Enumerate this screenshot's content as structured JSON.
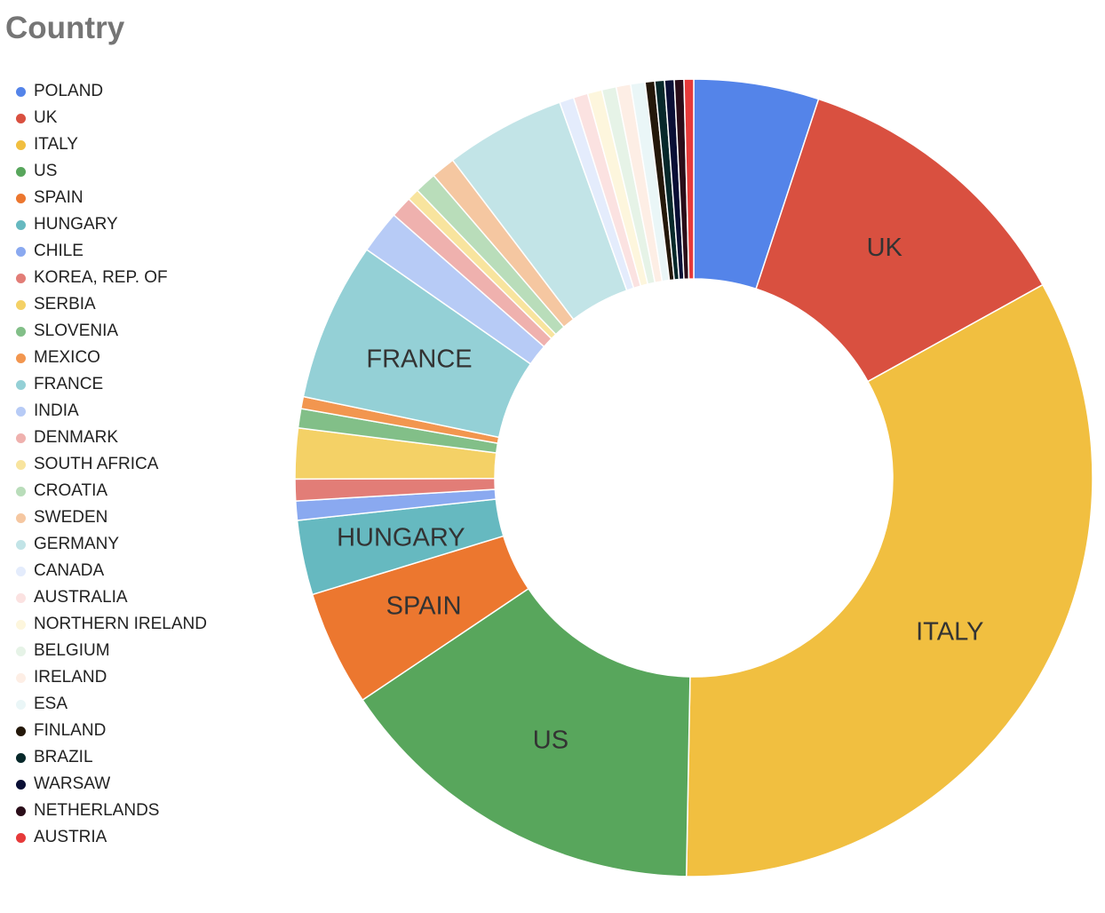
{
  "chart_data": {
    "type": "pie",
    "title": "Country",
    "legend_position": "left",
    "categories": [
      "POLAND",
      "UK",
      "ITALY",
      "US",
      "SPAIN",
      "HUNGARY",
      "CHILE",
      "KOREA, REP. OF",
      "SERBIA",
      "SLOVENIA",
      "MEXICO",
      "FRANCE",
      "INDIA",
      "DENMARK",
      "SOUTH AFRICA",
      "CROATIA",
      "SWEDEN",
      "GERMANY",
      "CANADA",
      "AUSTRALIA",
      "NORTHERN IRELAND",
      "BELGIUM",
      "IRELAND",
      "ESA",
      "FINLAND",
      "BRAZIL",
      "WARSAW",
      "NETHERLANDS",
      "AUSTRIA"
    ],
    "values": [
      5.2,
      12.2,
      34.2,
      15.7,
      4.8,
      3.1,
      0.8,
      0.9,
      2.1,
      0.8,
      0.5,
      6.6,
      1.8,
      0.9,
      0.5,
      0.9,
      1.0,
      5.0,
      0.6,
      0.6,
      0.6,
      0.6,
      0.6,
      0.6,
      0.4,
      0.4,
      0.4,
      0.4,
      0.4
    ],
    "colors": [
      "#5484e9",
      "#d95040",
      "#f1bf40",
      "#58a65c",
      "#ec772f",
      "#66b9c0",
      "#8aa9f0",
      "#e27d77",
      "#f4d166",
      "#82bf88",
      "#f2964f",
      "#94d0d6",
      "#b7cbf6",
      "#efb1ae",
      "#f8e49e",
      "#b9ddba",
      "#f5c7a1",
      "#c2e4e7",
      "#e4ecfc",
      "#fbe2e1",
      "#fdf6dd",
      "#e6f3e7",
      "#fdeee5",
      "#eaf6f7",
      "#24180a",
      "#07282a",
      "#0a0f35",
      "#2a0d19",
      "#e63a3a"
    ],
    "slice_labels": [
      "",
      "UK",
      "ITALY",
      "US",
      "SPAIN",
      "HUNGARY",
      "",
      "",
      "",
      "",
      "",
      "FRANCE",
      "",
      "",
      "",
      "",
      "",
      "",
      "",
      "",
      "",
      "",
      "",
      "",
      "",
      "",
      "",
      "",
      ""
    ],
    "donut": true
  }
}
